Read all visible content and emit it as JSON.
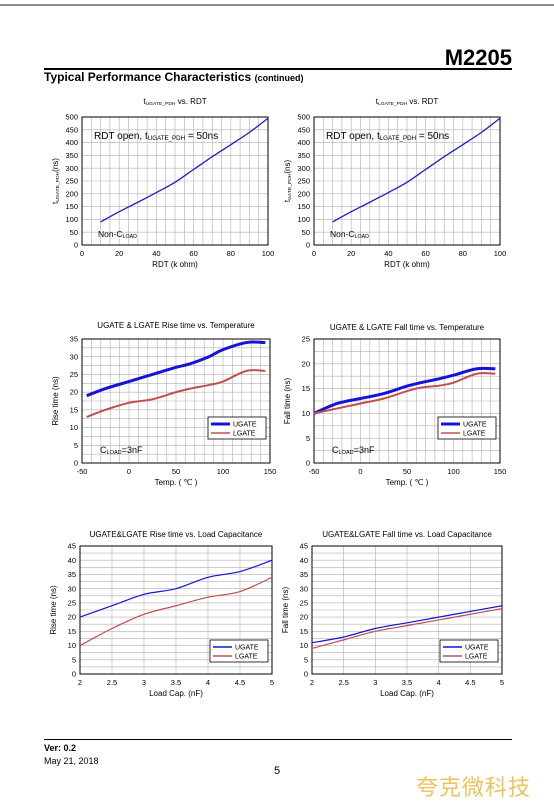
{
  "header": {
    "part_number": "M2205"
  },
  "section": {
    "title": "Typical Performance Characteristics",
    "subtitle": "(continued)"
  },
  "chart_data": [
    {
      "type": "line",
      "title": "tUGATE_PDH vs. RDT",
      "title_parts": {
        "sym": "t",
        "sub": "UGATE_PDH",
        "rest": " vs. RDT"
      },
      "xlabel": "RDT (k ohm)",
      "ylabel": "tUGATE_PDH(ns)",
      "ylabel_parts": {
        "sym": "t",
        "sub": "UGATE_PDH",
        "rest": "(ns)"
      },
      "xlim": [
        0,
        100
      ],
      "ylim": [
        0,
        500
      ],
      "xticks": [
        0,
        20,
        40,
        60,
        80,
        100
      ],
      "yticks": [
        0,
        50,
        100,
        150,
        200,
        250,
        300,
        350,
        400,
        450,
        500
      ],
      "grid": true,
      "annotation": {
        "pre": "RDT open, t",
        "sub": "UGATE_PDH",
        "post": " = 50ns"
      },
      "annotation2": {
        "pre": "Non-C",
        "sub": "LOAD"
      },
      "series": [
        {
          "color": "#1c1cd0",
          "x": [
            10,
            20,
            30,
            40,
            50,
            60,
            70,
            80,
            90,
            100
          ],
          "y": [
            90,
            130,
            167,
            205,
            245,
            295,
            345,
            392,
            440,
            495
          ]
        }
      ]
    },
    {
      "type": "line",
      "title": "tLGATE_PDH vs. RDT",
      "title_parts": {
        "sym": "t",
        "sub": "LGATE_PDH",
        "rest": " vs. RDT"
      },
      "xlabel": "RDT (k ohm)",
      "ylabel": "tGATE_PDH(ns)",
      "ylabel_parts": {
        "sym": "t",
        "sub": "GATE_PDH",
        "rest": "(ns)"
      },
      "xlim": [
        0,
        100
      ],
      "ylim": [
        0,
        500
      ],
      "xticks": [
        0,
        20,
        40,
        60,
        80,
        100
      ],
      "yticks": [
        0,
        50,
        100,
        150,
        200,
        250,
        300,
        350,
        400,
        450,
        500
      ],
      "grid": true,
      "annotation": {
        "pre": "RDT open, t",
        "sub": "LGATE_PDH",
        "post": " = 50ns"
      },
      "annotation2": {
        "pre": "Non-C",
        "sub": "LOAD"
      },
      "series": [
        {
          "color": "#1c1cd0",
          "x": [
            10,
            20,
            30,
            40,
            50,
            60,
            70,
            80,
            90,
            100
          ],
          "y": [
            90,
            130,
            167,
            205,
            245,
            295,
            345,
            392,
            440,
            495
          ]
        }
      ]
    },
    {
      "type": "line",
      "title": "UGATE & LGATE  Rise time vs. Temperature",
      "xlabel": "Temp. ( ℃ )",
      "ylabel": "Rise time (ns)",
      "xlim": [
        -50,
        150
      ],
      "ylim": [
        0,
        35
      ],
      "xticks": [
        -50,
        0,
        50,
        100,
        150
      ],
      "yticks": [
        0,
        5,
        10,
        15,
        20,
        25,
        30,
        35
      ],
      "grid": true,
      "annotation2": {
        "pre": "C",
        "sub": "LOAD",
        "post": "=3nF"
      },
      "legend": "right",
      "series": [
        {
          "name": "UGATE",
          "color": "#1414d8",
          "width": 3,
          "x": [
            -45,
            -25,
            0,
            25,
            50,
            65,
            85,
            100,
            125,
            145
          ],
          "y": [
            19,
            21,
            23,
            25,
            27,
            28,
            30,
            32,
            34,
            34
          ]
        },
        {
          "name": "LGATE",
          "color": "#c0504d",
          "width": 2,
          "x": [
            -45,
            -25,
            0,
            25,
            50,
            65,
            85,
            100,
            125,
            145
          ],
          "y": [
            13,
            15,
            17,
            18,
            20,
            21,
            22,
            23,
            26,
            26
          ]
        }
      ]
    },
    {
      "type": "line",
      "title": "UGATE & LGATE  Fall time vs. Temperature",
      "xlabel": "Temp. ( ℃ )",
      "ylabel": "Fall time (ns)",
      "xlim": [
        -50,
        150
      ],
      "ylim": [
        0,
        25
      ],
      "xticks": [
        -50,
        0,
        50,
        100,
        150
      ],
      "yticks": [
        0,
        5,
        10,
        15,
        20,
        25
      ],
      "grid": true,
      "annotation2": {
        "pre": "C",
        "sub": "LOAD",
        "post": "=3nF"
      },
      "legend": "right",
      "series": [
        {
          "name": "UGATE",
          "color": "#1414d8",
          "width": 3,
          "x": [
            -50,
            -25,
            0,
            25,
            50,
            65,
            85,
            100,
            125,
            145
          ],
          "y": [
            10,
            12,
            13,
            14,
            15.5,
            16.2,
            17,
            17.7,
            19,
            19
          ]
        },
        {
          "name": "LGATE",
          "color": "#c0504d",
          "width": 2,
          "x": [
            -50,
            -25,
            0,
            25,
            50,
            65,
            85,
            100,
            125,
            145
          ],
          "y": [
            10,
            11,
            12,
            13,
            14.5,
            15.2,
            15.6,
            16.2,
            18,
            18
          ]
        }
      ]
    },
    {
      "type": "line",
      "title": "UGATE&LGATE  Rise time vs. Load  Capacitance",
      "xlabel": "Load Cap. (nF)",
      "ylabel": "Rise  time  (ns)",
      "xlim": [
        2,
        5
      ],
      "ylim": [
        0,
        45
      ],
      "xticks": [
        2,
        2.5,
        3,
        3.5,
        4,
        4.5,
        5
      ],
      "yticks": [
        0,
        5,
        10,
        15,
        20,
        25,
        30,
        35,
        40,
        45
      ],
      "grid": true,
      "legend": "right",
      "series": [
        {
          "name": "UGATE",
          "color": "#1414d8",
          "width": 1.2,
          "x": [
            2,
            2.5,
            3,
            3.5,
            4,
            4.5,
            5
          ],
          "y": [
            20,
            24,
            28,
            30,
            34,
            36,
            40
          ]
        },
        {
          "name": "LGATE",
          "color": "#c0504d",
          "width": 1.2,
          "x": [
            2,
            2.5,
            3,
            3.5,
            4,
            4.5,
            5
          ],
          "y": [
            10,
            16,
            21,
            24,
            27,
            29,
            34
          ]
        }
      ]
    },
    {
      "type": "line",
      "title": "UGATE&LGATE  Fall time vs. Load Capacitance",
      "xlabel": "Load Cap. (nF)",
      "ylabel": "Fall  time  (ns)",
      "xlim": [
        2,
        5
      ],
      "ylim": [
        0,
        45
      ],
      "xticks": [
        2,
        2.5,
        3,
        3.5,
        4,
        4.5,
        5
      ],
      "yticks": [
        0,
        5,
        10,
        15,
        20,
        25,
        30,
        35,
        40,
        45
      ],
      "grid": true,
      "legend": "right",
      "series": [
        {
          "name": "UGATE",
          "color": "#1414d8",
          "width": 1.2,
          "x": [
            2,
            2.5,
            3,
            3.5,
            4,
            4.5,
            5
          ],
          "y": [
            11,
            13,
            16,
            18,
            20,
            22,
            24
          ]
        },
        {
          "name": "LGATE",
          "color": "#c0504d",
          "width": 1.2,
          "x": [
            2,
            2.5,
            3,
            3.5,
            4,
            4.5,
            5
          ],
          "y": [
            9,
            12,
            15,
            17,
            19,
            21,
            23
          ]
        }
      ]
    }
  ],
  "footer": {
    "version": "Ver: 0.2",
    "date": "May 21, 2018",
    "page": "5"
  },
  "watermark": "夸克微科技"
}
